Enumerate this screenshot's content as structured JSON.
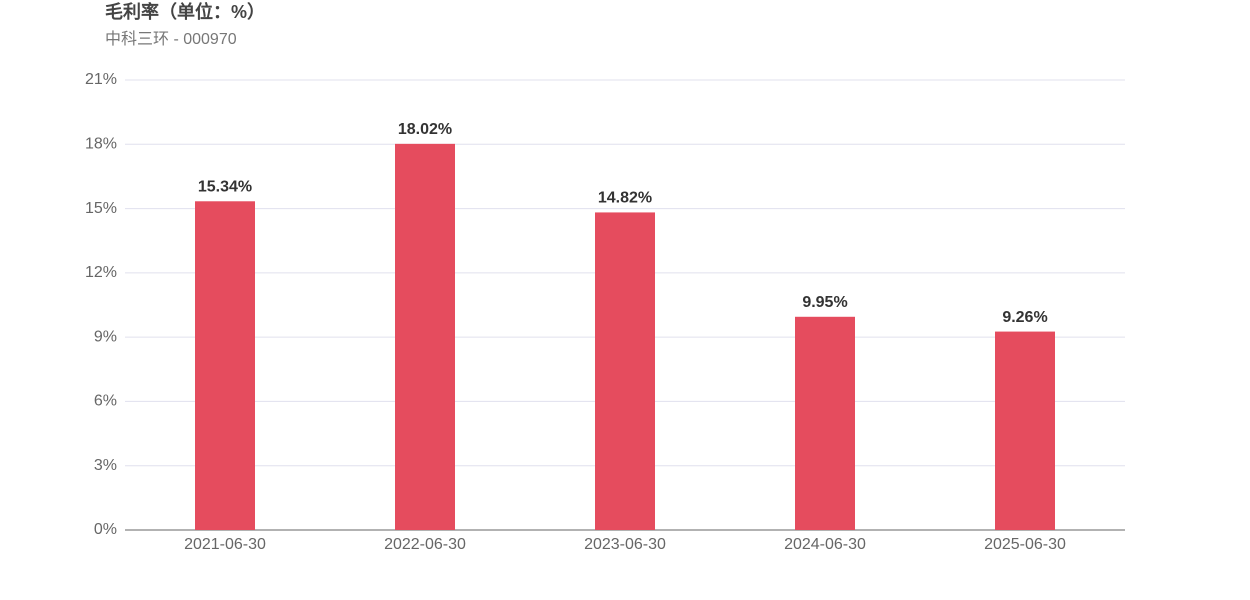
{
  "chart_data": {
    "type": "bar",
    "title": "毛利率（单位：%）",
    "subtitle": "中科三环 - 000970",
    "categories": [
      "2021-06-30",
      "2022-06-30",
      "2023-06-30",
      "2024-06-30",
      "2025-06-30"
    ],
    "values": [
      15.34,
      18.02,
      14.82,
      9.95,
      9.26
    ],
    "value_labels": [
      "15.34%",
      "18.02%",
      "14.82%",
      "9.95%",
      "9.26%"
    ],
    "color": "#e54c5e",
    "ylim": [
      0,
      21
    ],
    "yticks": [
      {
        "value": 0,
        "label": "0%"
      },
      {
        "value": 3,
        "label": "3%"
      },
      {
        "value": 6,
        "label": "6%"
      },
      {
        "value": 9,
        "label": "9%"
      },
      {
        "value": 12,
        "label": "12%"
      },
      {
        "value": 15,
        "label": "15%"
      },
      {
        "value": 18,
        "label": "18%"
      },
      {
        "value": 21,
        "label": "21%"
      }
    ],
    "grid": true
  }
}
